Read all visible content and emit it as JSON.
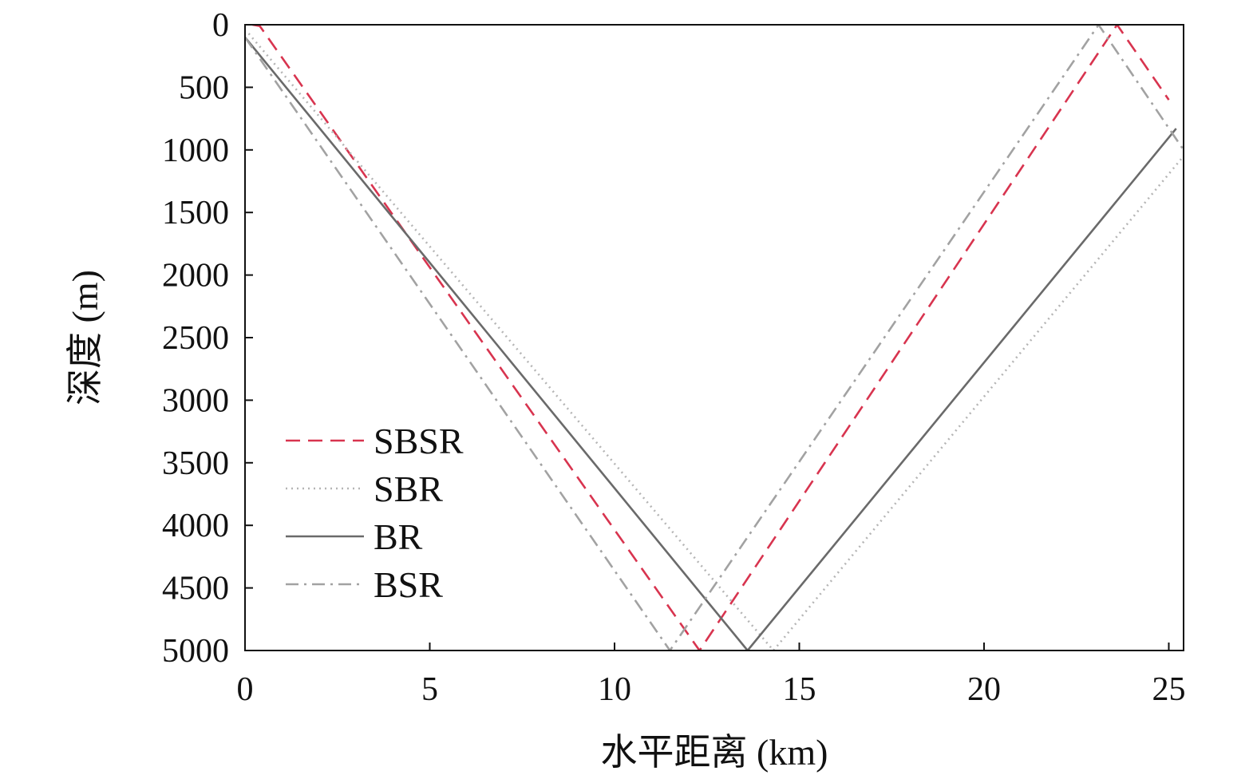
{
  "chart_data": {
    "type": "line",
    "xlabel": "水平距离 (km)",
    "ylabel": "深度 (m)",
    "xlim": [
      0,
      25.4
    ],
    "ylim": [
      0,
      5000
    ],
    "y_inverted": true,
    "x_ticks": [
      0,
      5,
      10,
      15,
      20,
      25
    ],
    "x_tick_labels": [
      "0",
      "5",
      "10",
      "15",
      "20",
      "25"
    ],
    "y_ticks": [
      0,
      500,
      1000,
      1500,
      2000,
      2500,
      3000,
      3500,
      4000,
      4500,
      5000
    ],
    "y_tick_labels": [
      "0",
      "500",
      "1000",
      "1500",
      "2000",
      "2500",
      "3000",
      "3500",
      "4000",
      "4500",
      "5000"
    ],
    "grid": false,
    "legend_position": "bottom-left",
    "series": [
      {
        "name": "SBSR",
        "color": "#d8344f",
        "dash": "dashed",
        "points": [
          [
            0.2,
            0
          ],
          [
            0.4,
            10
          ],
          [
            12.3,
            5000
          ],
          [
            23.6,
            0
          ],
          [
            25.0,
            600
          ]
        ]
      },
      {
        "name": "SBR",
        "color": "#b5b5b5",
        "dash": "dotted",
        "points": [
          [
            0.1,
            70
          ],
          [
            14.3,
            5000
          ],
          [
            25.4,
            1050
          ]
        ]
      },
      {
        "name": "BR",
        "color": "#6a6a6a",
        "dash": "solid",
        "points": [
          [
            0,
            100
          ],
          [
            13.6,
            5000
          ],
          [
            25.2,
            830
          ]
        ]
      },
      {
        "name": "BSR",
        "color": "#a2a2a2",
        "dash": "dashdot",
        "points": [
          [
            0,
            100
          ],
          [
            11.5,
            5000
          ],
          [
            23.1,
            0
          ],
          [
            25.4,
            1000
          ]
        ]
      }
    ]
  }
}
